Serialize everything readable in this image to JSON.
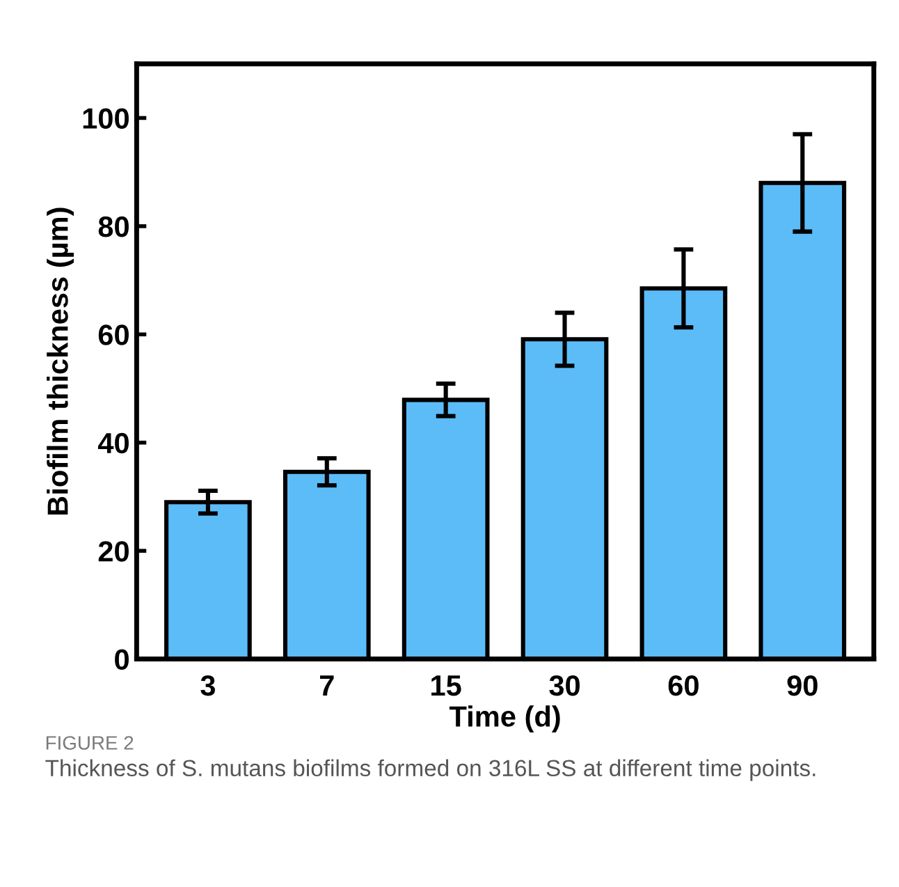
{
  "chart_data": {
    "type": "bar",
    "xlabel": "Time (d)",
    "ylabel": "Biofilm thickness (µm)",
    "categories": [
      "3",
      "7",
      "15",
      "30",
      "60",
      "90"
    ],
    "values": [
      29,
      34.6,
      47.9,
      59.1,
      68.5,
      88
    ],
    "errors": [
      2.1,
      2.5,
      3,
      4.9,
      7.2,
      9
    ],
    "color": "#5bbcf8",
    "ylim": [
      0,
      110
    ],
    "yticks": [
      0,
      20,
      40,
      60,
      80,
      100
    ],
    "grid": false,
    "annotations": [
      "FIGURE 2",
      "Thickness of S. mutans biofilms formed on 316L SS at different time points."
    ]
  }
}
